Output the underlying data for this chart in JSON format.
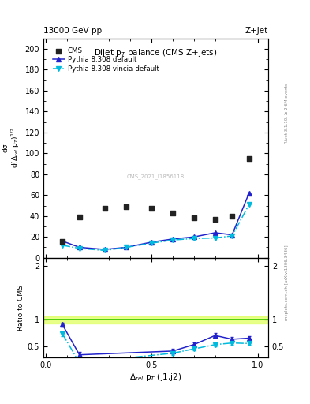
{
  "title_top": "13000 GeV pp",
  "title_top_right": "Z+Jet",
  "plot_title": "Dijet p$_T$ balance (CMS Z+jets)",
  "ylabel_main": "dσ / d(Δ$_{rel}$ p$_T$)$^{1/2}$",
  "ylabel_ratio": "Ratio to CMS",
  "xlabel": "$\\Delta_{rel}$ p$_T$ (j1,j2)",
  "right_label_top": "Rivet 3.1.10, ≥ 2.6M events",
  "right_label_bottom": "mcplots.cern.ch [arXiv:1306.3436]",
  "watermark": "CMS_2021_I1856118",
  "cms_x_real": [
    0.08,
    0.16,
    0.28,
    0.38,
    0.5,
    0.6,
    0.7,
    0.8,
    0.88,
    0.96
  ],
  "cms_y_real": [
    16,
    39,
    47,
    49,
    47,
    43,
    38,
    37,
    40,
    95
  ],
  "py_def_x": [
    0.08,
    0.16,
    0.28,
    0.38,
    0.5,
    0.6,
    0.7,
    0.8,
    0.88,
    0.96
  ],
  "py_def_y": [
    16,
    10,
    8,
    10,
    15,
    18,
    20,
    24,
    22,
    62
  ],
  "py_vin_x": [
    0.08,
    0.16,
    0.28,
    0.38,
    0.5,
    0.6,
    0.7,
    0.8,
    0.88,
    0.96
  ],
  "py_vin_y": [
    12,
    9,
    7,
    10,
    14,
    17,
    18.5,
    19,
    21,
    51
  ],
  "ratio_def_x": [
    0.08,
    0.16,
    0.6,
    0.7,
    0.8,
    0.88,
    0.96
  ],
  "ratio_def_y": [
    0.91,
    0.35,
    0.42,
    0.54,
    0.71,
    0.64,
    0.66
  ],
  "ratio_def_err": [
    0.04,
    0.05,
    0.04,
    0.04,
    0.04,
    0.04,
    0.04
  ],
  "ratio_vin_x": [
    0.08,
    0.16,
    0.6,
    0.7,
    0.8,
    0.88,
    0.96
  ],
  "ratio_vin_y": [
    0.74,
    0.2,
    0.38,
    0.46,
    0.54,
    0.57,
    0.56
  ],
  "ratio_vin_err": [
    0.04,
    0.05,
    0.03,
    0.03,
    0.03,
    0.03,
    0.03
  ],
  "ylim_main": [
    0,
    210
  ],
  "ylim_ratio": [
    0.3,
    2.15
  ],
  "xlim": [
    -0.01,
    1.05
  ],
  "color_cms": "#222222",
  "color_def": "#2222cc",
  "color_vin": "#00bbdd",
  "color_ref_band": "#ddff55",
  "color_ref_line": "#44cc00",
  "yticks_main": [
    0,
    20,
    40,
    60,
    80,
    100,
    120,
    140,
    160,
    180,
    200
  ],
  "yticks_ratio": [
    0.5,
    1.0,
    2.0
  ],
  "xticks": [
    0.0,
    0.5,
    1.0
  ]
}
